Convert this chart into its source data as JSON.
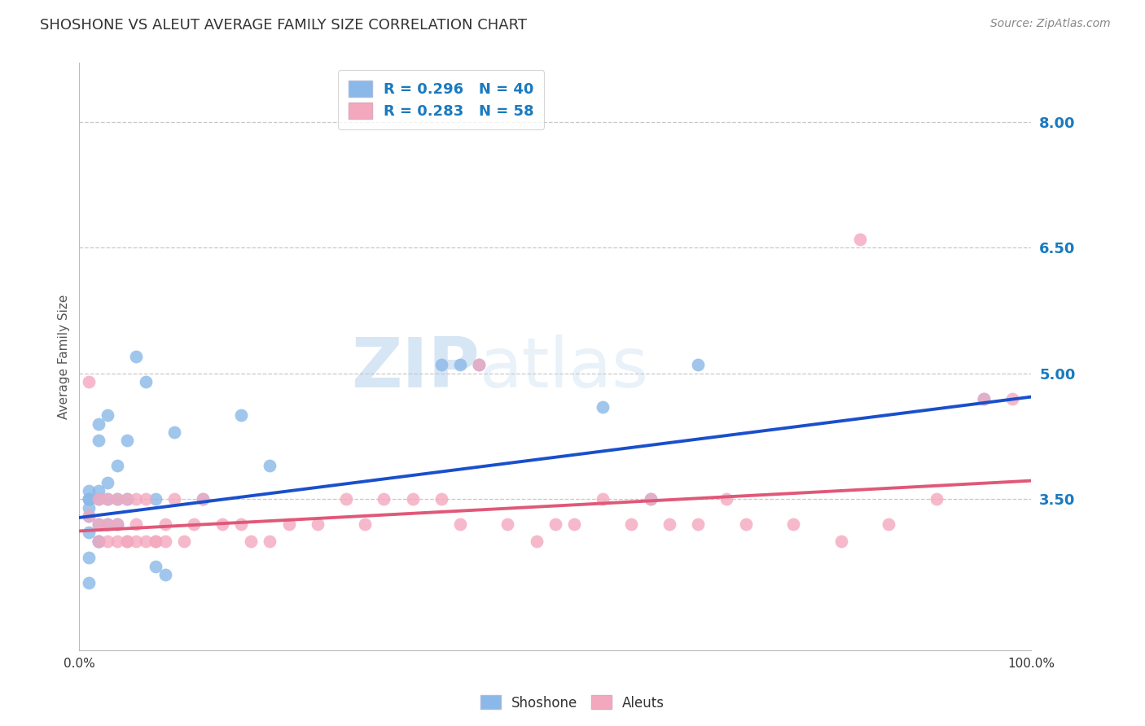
{
  "title": "SHOSHONE VS ALEUT AVERAGE FAMILY SIZE CORRELATION CHART",
  "source": "Source: ZipAtlas.com",
  "ylabel": "Average Family Size",
  "xlim": [
    0,
    100
  ],
  "ylim": [
    1.7,
    8.7
  ],
  "yticks": [
    3.5,
    5.0,
    6.5,
    8.0
  ],
  "ytick_color": "#1a7abf",
  "grid_color": "#c8c8c8",
  "background_color": "#ffffff",
  "shoshone_color": "#8ab8e8",
  "aleut_color": "#f4a8be",
  "shoshone_line_color": "#1a4fcc",
  "aleut_line_color": "#e05878",
  "legend_color": "#1a7abf",
  "watermark_color": "#c5d8ee",
  "shoshone_x": [
    1,
    1,
    1,
    1,
    1,
    1,
    2,
    2,
    2,
    2,
    2,
    2,
    3,
    3,
    3,
    4,
    4,
    4,
    5,
    5,
    6,
    7,
    8,
    8,
    9,
    10,
    13,
    17,
    20,
    38,
    40,
    42,
    55,
    60,
    65,
    95,
    1,
    1,
    2,
    3
  ],
  "shoshone_y": [
    3.5,
    3.3,
    3.1,
    3.5,
    3.6,
    3.4,
    4.4,
    4.2,
    3.6,
    3.5,
    3.2,
    3.0,
    4.5,
    3.7,
    3.5,
    3.9,
    3.5,
    3.2,
    4.2,
    3.5,
    5.2,
    4.9,
    3.5,
    2.7,
    2.6,
    4.3,
    3.5,
    4.5,
    3.9,
    5.1,
    5.1,
    5.1,
    4.6,
    3.5,
    5.1,
    4.7,
    2.8,
    2.5,
    3.0,
    3.2
  ],
  "aleut_x": [
    1,
    1,
    2,
    2,
    3,
    3,
    4,
    4,
    5,
    5,
    6,
    6,
    7,
    8,
    9,
    10,
    11,
    12,
    13,
    15,
    17,
    18,
    20,
    22,
    25,
    28,
    30,
    32,
    35,
    38,
    40,
    42,
    45,
    48,
    50,
    52,
    55,
    58,
    60,
    62,
    65,
    68,
    70,
    75,
    80,
    82,
    85,
    90,
    95,
    98,
    2,
    3,
    4,
    5,
    6,
    7,
    8,
    9
  ],
  "aleut_y": [
    3.3,
    4.9,
    3.5,
    3.2,
    3.5,
    3.2,
    3.5,
    3.2,
    3.5,
    3.0,
    3.5,
    3.2,
    3.5,
    3.0,
    3.2,
    3.5,
    3.0,
    3.2,
    3.5,
    3.2,
    3.2,
    3.0,
    3.0,
    3.2,
    3.2,
    3.5,
    3.2,
    3.5,
    3.5,
    3.5,
    3.2,
    5.1,
    3.2,
    3.0,
    3.2,
    3.2,
    3.5,
    3.2,
    3.5,
    3.2,
    3.2,
    3.5,
    3.2,
    3.2,
    3.0,
    6.6,
    3.2,
    3.5,
    4.7,
    4.7,
    3.0,
    3.0,
    3.0,
    3.0,
    3.0,
    3.0,
    3.0,
    3.0
  ],
  "shoshone_line_x0": 0,
  "shoshone_line_y0": 3.28,
  "shoshone_line_x1": 100,
  "shoshone_line_y1": 4.72,
  "aleut_line_x0": 0,
  "aleut_line_y0": 3.12,
  "aleut_line_x1": 100,
  "aleut_line_y1": 3.72
}
